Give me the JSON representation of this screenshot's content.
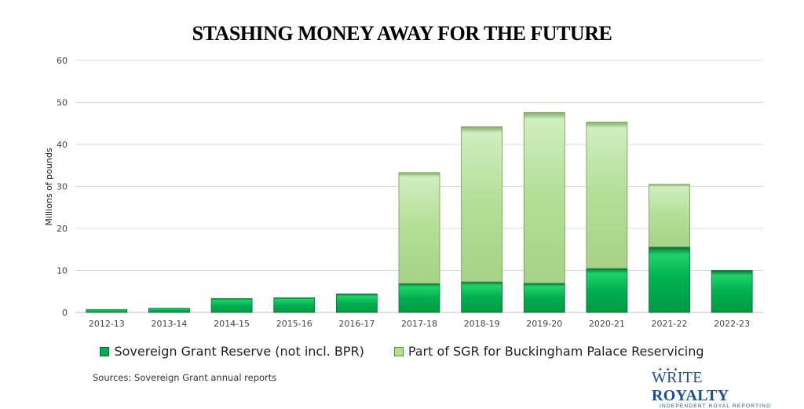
{
  "chart_data": {
    "type": "bar",
    "stacked": true,
    "title": "STASHING MONEY AWAY FOR THE FUTURE",
    "ylabel": "Millions of pounds",
    "xlabel": "",
    "ylim": [
      0,
      60
    ],
    "yticks": [
      0,
      10,
      20,
      30,
      40,
      50,
      60
    ],
    "grid": true,
    "legend_position": "bottom",
    "categories": [
      "2012-13",
      "2013-14",
      "2014-15",
      "2015-16",
      "2016-17",
      "2017-18",
      "2018-19",
      "2019-20",
      "2020-21",
      "2021-22",
      "2022-23"
    ],
    "series": [
      {
        "name": "Sovereign Grant Reserve (not incl. BPR)",
        "color": "#00b050",
        "values": [
          0.7,
          1.0,
          3.3,
          3.5,
          4.4,
          6.9,
          7.3,
          7.0,
          10.5,
          15.6,
          10.0
        ]
      },
      {
        "name": "Part of SGR for Buckingham Palace Reservicing",
        "color": "#b3de96",
        "values": [
          0,
          0,
          0,
          0,
          0,
          26.4,
          36.9,
          40.6,
          34.8,
          14.9,
          0
        ]
      }
    ]
  },
  "footer": {
    "sources": "Sources: Sovereign Grant annual reports"
  },
  "logo": {
    "text_1": "WRITE",
    "text_2": "ROYALTY",
    "tagline": "INDEPENDENT ROYAL REPORTING"
  }
}
